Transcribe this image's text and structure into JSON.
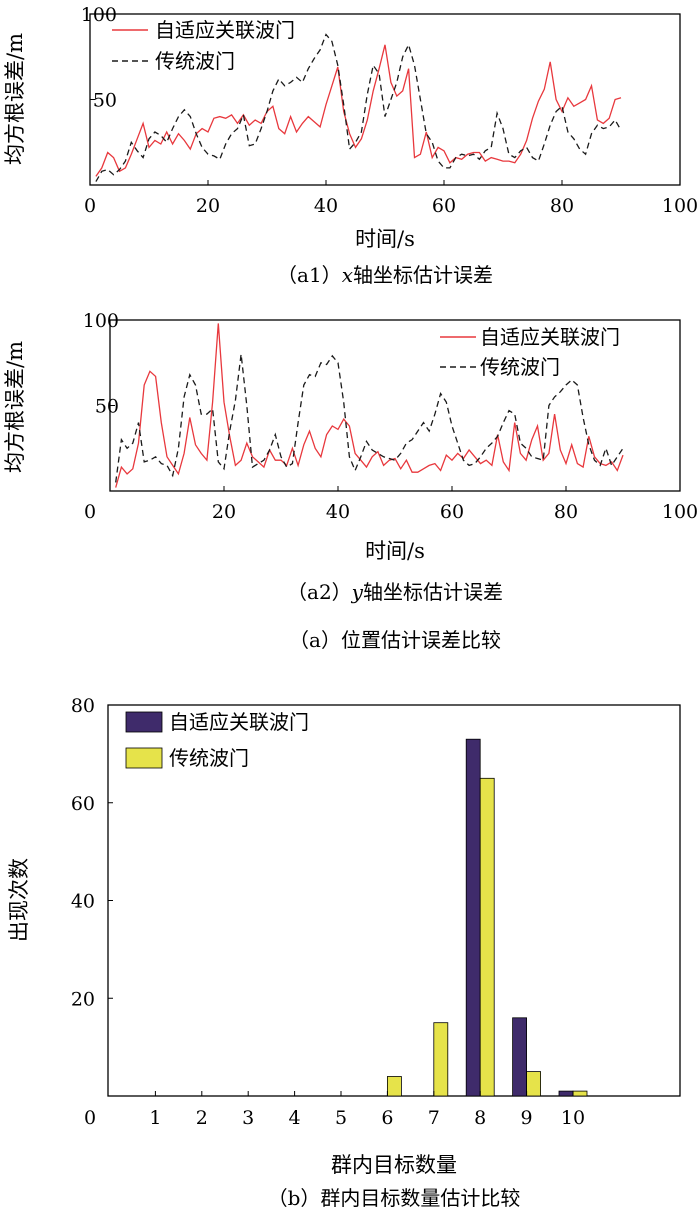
{
  "figure": {
    "group_caption_a": "（a）位置估计误差比较",
    "caption_b": "（b）群内目标数量估计比较"
  },
  "chart_data": [
    {
      "id": "a1",
      "type": "line",
      "caption_prefix": "（a1）",
      "caption_var": "x",
      "caption_suffix": "轴坐标估计误差",
      "xlabel": "时间/s",
      "ylabel": "均方根误差/m",
      "xlim": [
        0,
        100
      ],
      "ylim": [
        0,
        100
      ],
      "xticks": [
        "0",
        "20",
        "40",
        "60",
        "80",
        "100"
      ],
      "yticks": [
        "50",
        "100"
      ],
      "legend_position": "top-left",
      "x": [
        1,
        2,
        3,
        4,
        5,
        6,
        7,
        8,
        9,
        10,
        11,
        12,
        13,
        14,
        15,
        16,
        17,
        18,
        19,
        20,
        21,
        22,
        23,
        24,
        25,
        26,
        27,
        28,
        29,
        30,
        31,
        32,
        33,
        34,
        35,
        36,
        37,
        38,
        39,
        40,
        41,
        42,
        43,
        44,
        45,
        46,
        47,
        48,
        49,
        50,
        51,
        52,
        53,
        54,
        55,
        56,
        57,
        58,
        59,
        60,
        61,
        62,
        63,
        64,
        65,
        66,
        67,
        68,
        69,
        70,
        71,
        72,
        73,
        74,
        75,
        76,
        77,
        78,
        79,
        80,
        81,
        82,
        83,
        84,
        85,
        86,
        87,
        88,
        89,
        90
      ],
      "series": [
        {
          "name": "自适应关联波门",
          "color": "#e8383d",
          "dash": "solid",
          "values": [
            5,
            10,
            19,
            16,
            8,
            10,
            18,
            27,
            36,
            22,
            26,
            24,
            31,
            24,
            30,
            26,
            21,
            30,
            33,
            31,
            39,
            40,
            39,
            41,
            36,
            41,
            35,
            38,
            36,
            43,
            46,
            33,
            30,
            40,
            31,
            36,
            40,
            37,
            34,
            47,
            58,
            69,
            43,
            30,
            22,
            27,
            38,
            55,
            68,
            82,
            60,
            52,
            55,
            68,
            16,
            18,
            31,
            16,
            22,
            20,
            13,
            16,
            15,
            18,
            19,
            19,
            14,
            16,
            15,
            14,
            14,
            13,
            18,
            26,
            39,
            49,
            56,
            72,
            50,
            43,
            51,
            46,
            48,
            50,
            58,
            38,
            36,
            39,
            50,
            51
          ]
        },
        {
          "name": "传统波门",
          "color": "#1a1a1a",
          "dash": "dashed",
          "values": [
            2,
            8,
            9,
            6,
            9,
            14,
            25,
            20,
            16,
            27,
            31,
            29,
            25,
            33,
            40,
            44,
            40,
            30,
            22,
            18,
            17,
            15,
            24,
            30,
            33,
            41,
            23,
            24,
            33,
            43,
            55,
            62,
            58,
            60,
            63,
            60,
            68,
            74,
            79,
            88,
            84,
            70,
            47,
            21,
            25,
            31,
            53,
            70,
            65,
            40,
            50,
            60,
            75,
            82,
            70,
            50,
            30,
            25,
            14,
            10,
            10,
            16,
            18,
            17,
            18,
            15,
            20,
            22,
            42,
            33,
            18,
            16,
            20,
            22,
            16,
            14,
            24,
            35,
            43,
            46,
            31,
            27,
            21,
            18,
            30,
            35,
            33,
            34,
            38,
            32
          ]
        }
      ]
    },
    {
      "id": "a2",
      "type": "line",
      "caption_prefix": "（a2）",
      "caption_var": "y",
      "caption_suffix": "轴坐标估计误差",
      "xlabel": "时间/s",
      "ylabel": "均方根误差/m",
      "xlim": [
        0,
        100
      ],
      "ylim": [
        0,
        100
      ],
      "xticks": [
        "0",
        "20",
        "40",
        "60",
        "80",
        "100"
      ],
      "yticks": [
        "50",
        "100"
      ],
      "legend_position": "top-right",
      "x": [
        1,
        2,
        3,
        4,
        5,
        6,
        7,
        8,
        9,
        10,
        11,
        12,
        13,
        14,
        15,
        16,
        17,
        18,
        19,
        20,
        21,
        22,
        23,
        24,
        25,
        26,
        27,
        28,
        29,
        30,
        31,
        32,
        33,
        34,
        35,
        36,
        37,
        38,
        39,
        40,
        41,
        42,
        43,
        44,
        45,
        46,
        47,
        48,
        49,
        50,
        51,
        52,
        53,
        54,
        55,
        56,
        57,
        58,
        59,
        60,
        61,
        62,
        63,
        64,
        65,
        66,
        67,
        68,
        69,
        70,
        71,
        72,
        73,
        74,
        75,
        76,
        77,
        78,
        79,
        80,
        81,
        82,
        83,
        84,
        85,
        86,
        87,
        88,
        89,
        90
      ],
      "series": [
        {
          "name": "自适应关联波门",
          "color": "#e8383d",
          "dash": "solid",
          "values": [
            2,
            14,
            10,
            13,
            28,
            62,
            70,
            67,
            40,
            20,
            15,
            10,
            22,
            43,
            27,
            22,
            18,
            52,
            98,
            52,
            32,
            15,
            18,
            28,
            20,
            17,
            14,
            24,
            18,
            18,
            15,
            25,
            15,
            27,
            35,
            25,
            20,
            33,
            38,
            36,
            42,
            38,
            22,
            18,
            14,
            20,
            23,
            15,
            18,
            19,
            13,
            18,
            11,
            11,
            13,
            15,
            16,
            12,
            21,
            18,
            22,
            19,
            24,
            20,
            16,
            18,
            15,
            33,
            17,
            12,
            40,
            22,
            18,
            30,
            38,
            18,
            22,
            45,
            24,
            16,
            27,
            16,
            14,
            32,
            20,
            16,
            15,
            17,
            12,
            21
          ]
        },
        {
          "name": "传统波门",
          "color": "#1a1a1a",
          "dash": "dashed",
          "values": [
            5,
            30,
            25,
            28,
            40,
            17,
            18,
            20,
            16,
            15,
            9,
            25,
            55,
            68,
            62,
            45,
            45,
            48,
            17,
            13,
            35,
            53,
            80,
            50,
            14,
            16,
            18,
            24,
            33,
            20,
            14,
            16,
            40,
            62,
            68,
            67,
            75,
            74,
            79,
            75,
            52,
            20,
            12,
            20,
            29,
            24,
            22,
            20,
            19,
            18,
            22,
            28,
            30,
            35,
            40,
            35,
            45,
            57,
            52,
            38,
            28,
            18,
            15,
            16,
            20,
            25,
            28,
            32,
            40,
            47,
            45,
            28,
            25,
            20,
            19,
            18,
            50,
            55,
            58,
            62,
            65,
            62,
            43,
            27,
            18,
            15,
            25,
            15,
            20,
            25
          ]
        }
      ]
    },
    {
      "id": "b",
      "type": "bar",
      "xlabel": "群内目标数量",
      "ylabel": "出现次数",
      "xlim": [
        0,
        12
      ],
      "ylim": [
        0,
        80
      ],
      "xticks": [
        "0",
        "1",
        "2",
        "3",
        "4",
        "5",
        "6",
        "7",
        "8",
        "9",
        "10"
      ],
      "yticks": [
        "20",
        "40",
        "60",
        "80"
      ],
      "legend_position": "top-left",
      "categories": [
        "1",
        "2",
        "3",
        "4",
        "5",
        "6",
        "7",
        "8",
        "9",
        "10"
      ],
      "series": [
        {
          "name": "自适应关联波门",
          "color": "#3f2b6b",
          "values": [
            0,
            0,
            0,
            0,
            0,
            0,
            0,
            73,
            16,
            1
          ]
        },
        {
          "name": "传统波门",
          "color": "#e6e34a",
          "values": [
            0,
            0,
            0,
            0,
            0,
            4,
            15,
            65,
            5,
            1
          ]
        }
      ]
    }
  ]
}
